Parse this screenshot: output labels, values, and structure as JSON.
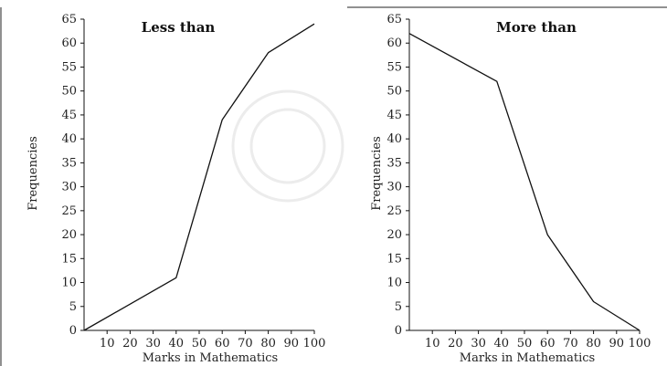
{
  "chart_data": [
    {
      "type": "line",
      "title": "Less than",
      "xlabel": "Marks in Mathematics",
      "ylabel": "Frequencies",
      "xlim": [
        0,
        100
      ],
      "ylim": [
        0,
        65
      ],
      "xticks": [
        10,
        20,
        30,
        40,
        50,
        60,
        70,
        80,
        90,
        100
      ],
      "yticks": [
        0,
        5,
        10,
        15,
        20,
        25,
        30,
        35,
        40,
        45,
        50,
        55,
        60,
        65
      ],
      "x": [
        0,
        40,
        60,
        80,
        100
      ],
      "y": [
        0,
        11,
        44,
        58,
        64
      ]
    },
    {
      "type": "line",
      "title": "More than",
      "xlabel": "Marks in Mathematics",
      "ylabel": "Frequencies",
      "xlim": [
        0,
        100
      ],
      "ylim": [
        0,
        65
      ],
      "xticks": [
        10,
        20,
        30,
        40,
        50,
        60,
        70,
        80,
        90,
        100
      ],
      "yticks": [
        0,
        5,
        10,
        15,
        20,
        25,
        30,
        35,
        40,
        45,
        50,
        55,
        60,
        65
      ],
      "x": [
        0,
        38,
        60,
        80,
        100
      ],
      "y": [
        62,
        52,
        20,
        6,
        0
      ]
    }
  ],
  "colors": {
    "line": "#111111",
    "axis": "#111111"
  }
}
